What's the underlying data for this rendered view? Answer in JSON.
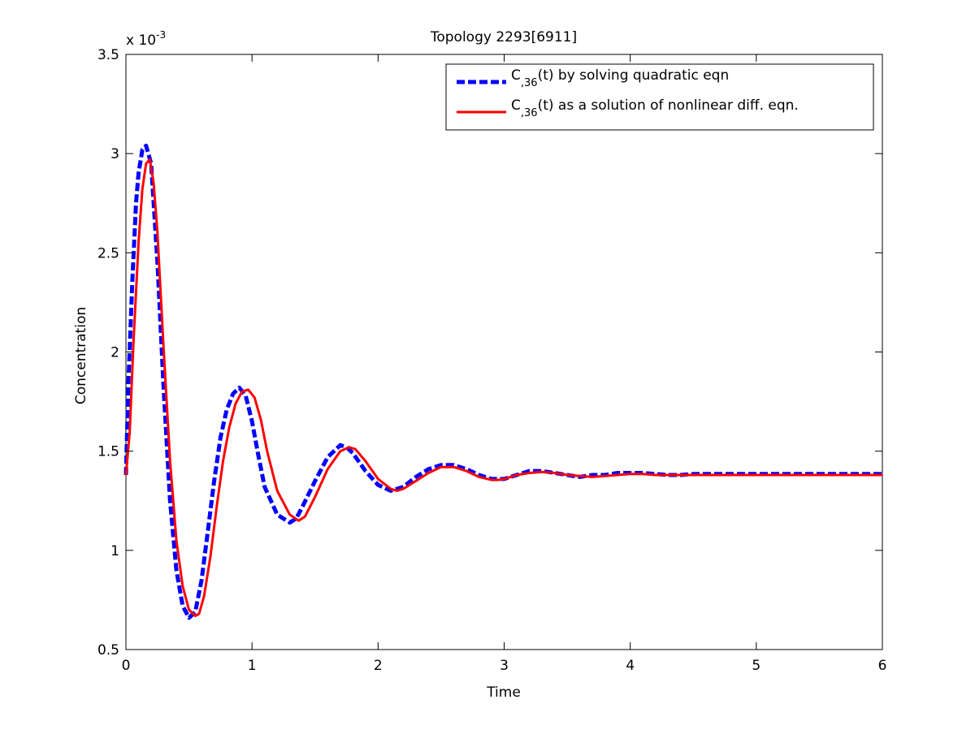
{
  "chart_data": {
    "type": "line",
    "title": "Topology 2293[6911]",
    "xlabel": "Time",
    "ylabel": "Concentration",
    "y_multiplier_label": {
      "base": "x 10",
      "exponent": "-3"
    },
    "xlim": [
      0,
      6
    ],
    "ylim": [
      0.5,
      3.5
    ],
    "xticks": [
      0,
      1,
      2,
      3,
      4,
      5,
      6
    ],
    "xtick_labels": [
      "0",
      "1",
      "2",
      "3",
      "4",
      "5",
      "6"
    ],
    "yticks": [
      0.5,
      1,
      1.5,
      2,
      2.5,
      3,
      3.5
    ],
    "ytick_labels": [
      "0.5",
      "1",
      "1.5",
      "2",
      "2.5",
      "3",
      "3.5"
    ],
    "grid": false,
    "legend_position": "top-right",
    "series": [
      {
        "legend_main": "C",
        "legend_sub": ",36",
        "legend_rest": "(t) by solving quadratic eqn",
        "color": "#0000ff",
        "style": "dashed",
        "x": [
          0,
          0.02,
          0.05,
          0.08,
          0.1,
          0.13,
          0.16,
          0.2,
          0.25,
          0.3,
          0.35,
          0.4,
          0.45,
          0.5,
          0.55,
          0.6,
          0.65,
          0.7,
          0.75,
          0.8,
          0.85,
          0.9,
          0.95,
          1.0,
          1.05,
          1.1,
          1.2,
          1.3,
          1.35,
          1.4,
          1.5,
          1.6,
          1.7,
          1.75,
          1.8,
          1.9,
          2.0,
          2.1,
          2.2,
          2.3,
          2.4,
          2.5,
          2.6,
          2.7,
          2.8,
          2.9,
          3.0,
          3.1,
          3.2,
          3.3,
          3.4,
          3.5,
          3.6,
          3.7,
          3.8,
          3.9,
          4.0,
          4.1,
          4.2,
          4.3,
          4.4,
          4.5,
          4.6,
          4.7,
          4.8,
          4.9,
          5.0,
          5.2,
          5.4,
          5.6,
          5.8,
          6.0
        ],
        "y": [
          1.38,
          1.85,
          2.35,
          2.75,
          2.9,
          3.02,
          3.04,
          2.95,
          2.45,
          1.8,
          1.25,
          0.9,
          0.72,
          0.66,
          0.69,
          0.85,
          1.1,
          1.35,
          1.57,
          1.71,
          1.79,
          1.82,
          1.78,
          1.65,
          1.48,
          1.32,
          1.18,
          1.14,
          1.16,
          1.22,
          1.35,
          1.47,
          1.53,
          1.52,
          1.49,
          1.4,
          1.33,
          1.3,
          1.32,
          1.37,
          1.41,
          1.43,
          1.43,
          1.41,
          1.38,
          1.36,
          1.36,
          1.38,
          1.4,
          1.4,
          1.39,
          1.38,
          1.37,
          1.38,
          1.38,
          1.39,
          1.39,
          1.39,
          1.385,
          1.38,
          1.38,
          1.385,
          1.385,
          1.385,
          1.385,
          1.385,
          1.385,
          1.385,
          1.385,
          1.385,
          1.385,
          1.385
        ]
      },
      {
        "legend_main": "C",
        "legend_sub": ",36",
        "legend_rest": "(t) as a solution of nonlinear diff. eqn.",
        "color": "#ff0000",
        "style": "solid",
        "x": [
          0,
          0.03,
          0.06,
          0.1,
          0.13,
          0.16,
          0.19,
          0.22,
          0.25,
          0.3,
          0.35,
          0.4,
          0.45,
          0.5,
          0.55,
          0.58,
          0.62,
          0.67,
          0.72,
          0.77,
          0.82,
          0.87,
          0.92,
          0.97,
          1.02,
          1.07,
          1.12,
          1.2,
          1.3,
          1.37,
          1.42,
          1.5,
          1.6,
          1.7,
          1.77,
          1.82,
          1.9,
          2.0,
          2.1,
          2.15,
          2.2,
          2.3,
          2.4,
          2.5,
          2.55,
          2.6,
          2.7,
          2.8,
          2.9,
          2.95,
          3.0,
          3.1,
          3.2,
          3.3,
          3.4,
          3.5,
          3.6,
          3.7,
          3.8,
          3.9,
          4.0,
          4.1,
          4.2,
          4.3,
          4.4,
          4.5,
          4.6,
          4.8,
          5.0,
          5.2,
          5.4,
          5.6,
          5.8,
          6.0
        ],
        "y": [
          1.38,
          1.6,
          2.05,
          2.55,
          2.82,
          2.95,
          2.97,
          2.85,
          2.6,
          2.0,
          1.45,
          1.05,
          0.82,
          0.7,
          0.67,
          0.68,
          0.77,
          0.97,
          1.22,
          1.45,
          1.62,
          1.74,
          1.8,
          1.81,
          1.77,
          1.66,
          1.5,
          1.3,
          1.18,
          1.15,
          1.17,
          1.27,
          1.41,
          1.5,
          1.52,
          1.51,
          1.45,
          1.36,
          1.31,
          1.3,
          1.31,
          1.35,
          1.39,
          1.42,
          1.42,
          1.42,
          1.4,
          1.37,
          1.355,
          1.355,
          1.36,
          1.38,
          1.39,
          1.395,
          1.39,
          1.38,
          1.375,
          1.37,
          1.375,
          1.38,
          1.385,
          1.385,
          1.38,
          1.38,
          1.38,
          1.38,
          1.38,
          1.38,
          1.38,
          1.38,
          1.38,
          1.38,
          1.38,
          1.38
        ]
      }
    ]
  }
}
